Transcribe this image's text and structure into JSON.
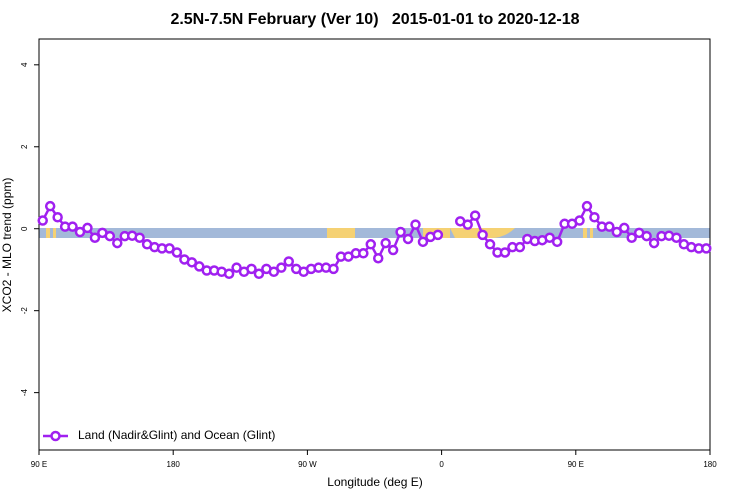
{
  "chart_data": {
    "type": "line",
    "title": "2.5N-7.5N February (Ver 10)   2015-01-01 to 2020-12-18",
    "x_label": "Longitude (deg E)",
    "y_label": "XCO2 - MLO trend (ppm)",
    "xlim": [
      90,
      540
    ],
    "xticks": [
      {
        "value": 90,
        "label": "90 E"
      },
      {
        "value": 180,
        "label": "180"
      },
      {
        "value": 270,
        "label": "90 W"
      },
      {
        "value": 360,
        "label": "0"
      },
      {
        "value": 450,
        "label": "90 E"
      },
      {
        "value": 540,
        "label": "180"
      }
    ],
    "ylim": [
      -5.4,
      4.63
    ],
    "yticks": [
      -4,
      -2,
      0,
      2,
      4
    ],
    "x": [
      92.5,
      97.5,
      102.5,
      107.5,
      112.5,
      117.5,
      122.5,
      127.5,
      132.5,
      137.5,
      142.5,
      147.5,
      152.5,
      157.5,
      162.5,
      167.5,
      172.5,
      177.5,
      182.5,
      187.5,
      192.5,
      197.5,
      202.5,
      207.5,
      212.5,
      217.5,
      222.5,
      227.5,
      232.5,
      237.5,
      242.5,
      247.5,
      252.5,
      257.5,
      262.5,
      267.5,
      272.5,
      277.5,
      282.5,
      287.5,
      292.5,
      297.5,
      302.5,
      307.5,
      312.5,
      317.5,
      322.5,
      327.5,
      332.5,
      337.5,
      342.5,
      347.5,
      352.5,
      357.5,
      362.5,
      367.5,
      372.5,
      377.5,
      382.5,
      387.5,
      392.5,
      397.5,
      402.5,
      407.5,
      412.5,
      417.5,
      422.5,
      427.5,
      432.5,
      437.5,
      442.5,
      447.5,
      452.5,
      457.5,
      462.5,
      467.5,
      472.5,
      477.5,
      482.5,
      487.5,
      492.5,
      497.5,
      502.5,
      507.5,
      512.5,
      517.5,
      522.5,
      527.5,
      532.5,
      537.5
    ],
    "series": [
      {
        "name": "Land (Nadir&Glint) and Ocean (Glint)",
        "color": "#a020f0",
        "values": [
          0.2,
          0.55,
          0.28,
          0.05,
          0.05,
          -0.08,
          0.02,
          -0.22,
          -0.1,
          -0.18,
          -0.35,
          -0.18,
          -0.17,
          -0.22,
          -0.38,
          -0.45,
          -0.48,
          -0.48,
          -0.58,
          -0.75,
          -0.82,
          -0.92,
          -1.02,
          -1.02,
          -1.05,
          -1.1,
          -0.95,
          -1.05,
          -0.98,
          -1.1,
          -0.98,
          -1.05,
          -0.95,
          -0.8,
          -0.98,
          -1.05,
          -0.98,
          -0.95,
          -0.95,
          -0.98,
          -0.68,
          -0.68,
          -0.6,
          -0.6,
          -0.38,
          -0.72,
          -0.35,
          -0.52,
          -0.08,
          -0.25,
          0.1,
          -0.32,
          -0.2,
          -0.15,
          null,
          null,
          0.18,
          0.1,
          0.32,
          -0.15,
          -0.38,
          -0.58,
          -0.58,
          -0.45,
          -0.45,
          -0.25,
          -0.3,
          -0.28,
          -0.22,
          -0.32,
          0.12,
          0.12,
          0.2,
          0.55,
          0.28,
          0.05,
          0.05,
          -0.08,
          0.02,
          -0.22,
          -0.1,
          -0.18,
          -0.35,
          -0.18,
          -0.17,
          -0.22,
          -0.38,
          -0.45,
          -0.48,
          -0.48
        ]
      }
    ],
    "legend": "bottom-left"
  }
}
